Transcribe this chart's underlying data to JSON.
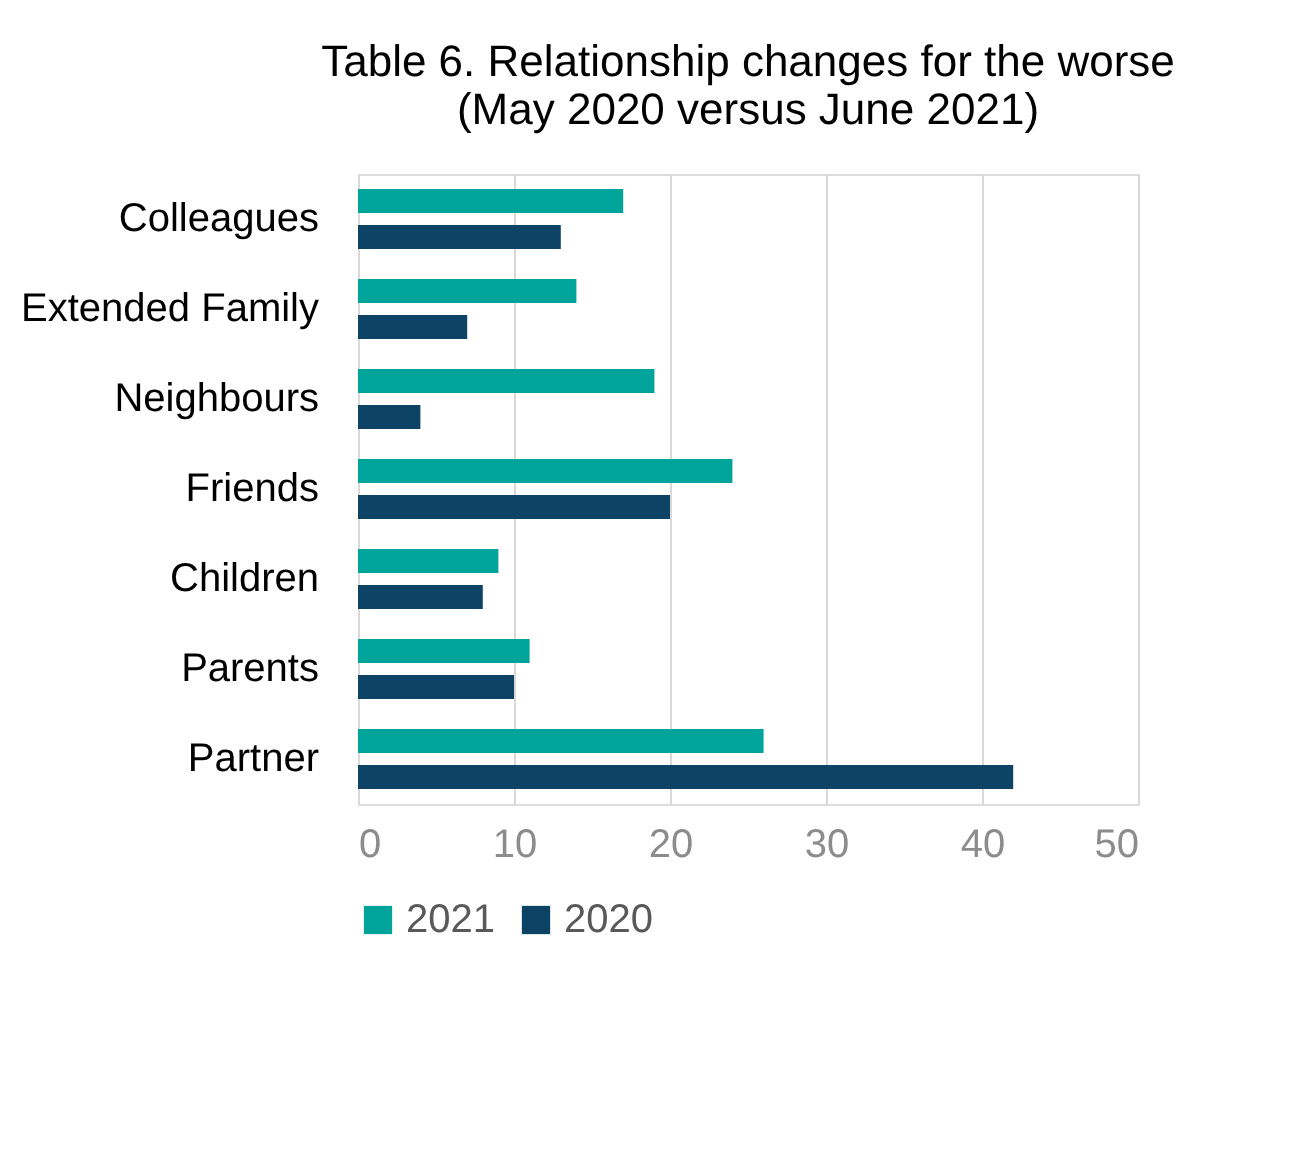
{
  "chart_data": {
    "type": "bar",
    "orientation": "horizontal",
    "title": "Table 6. Relationship changes for the worse\n(May 2020 versus June 2021)",
    "categories": [
      "Colleagues",
      "Extended Family",
      "Neighbours",
      "Friends",
      "Children",
      "Parents",
      "Partner"
    ],
    "series": [
      {
        "name": "2021",
        "color": "#00a49a",
        "values": [
          17,
          14,
          19,
          24,
          9,
          11,
          26
        ]
      },
      {
        "name": "2020",
        "color": "#0d4466",
        "values": [
          13,
          7,
          4,
          20,
          8,
          10,
          42
        ]
      }
    ],
    "xlim": [
      0,
      50
    ],
    "xticks": [
      0,
      10,
      20,
      30,
      40,
      50
    ],
    "grid": "x",
    "legend": "bottom"
  }
}
